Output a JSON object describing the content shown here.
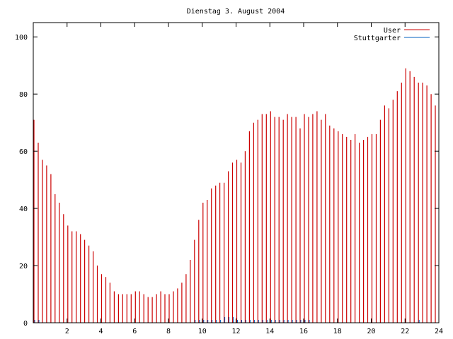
{
  "chart_data": {
    "type": "bar",
    "title": "Dienstag 3. August 2004",
    "xlabel": "",
    "ylabel": "",
    "xlim": [
      0,
      24
    ],
    "ylim": [
      0,
      105
    ],
    "grid": false,
    "legend_position": "top-right",
    "x_ticks": [
      "2",
      "4",
      "6",
      "8",
      "10",
      "12",
      "14",
      "16",
      "18",
      "20",
      "22",
      "24"
    ],
    "y_ticks": [
      "0",
      "20",
      "40",
      "60",
      "80",
      "100"
    ],
    "series": [
      {
        "name": "User",
        "color": "#cc0000",
        "x": [
          0.0,
          0.25,
          0.5,
          0.75,
          1.0,
          1.25,
          1.5,
          1.75,
          2.0,
          2.25,
          2.5,
          2.75,
          3.0,
          3.25,
          3.5,
          3.75,
          4.0,
          4.25,
          4.5,
          4.75,
          5.0,
          5.25,
          5.5,
          5.75,
          6.0,
          6.25,
          6.5,
          6.75,
          7.0,
          7.25,
          7.5,
          7.75,
          8.0,
          8.25,
          8.5,
          8.75,
          9.0,
          9.25,
          9.5,
          9.75,
          10.0,
          10.25,
          10.5,
          10.75,
          11.0,
          11.25,
          11.5,
          11.75,
          12.0,
          12.25,
          12.5,
          12.75,
          13.0,
          13.25,
          13.5,
          13.75,
          14.0,
          14.25,
          14.5,
          14.75,
          15.0,
          15.25,
          15.5,
          15.75,
          16.0,
          16.25,
          16.5,
          16.75,
          17.0,
          17.25,
          17.5,
          17.75,
          18.0,
          18.25,
          18.5,
          18.75,
          19.0,
          19.25,
          19.5,
          19.75,
          20.0,
          20.25,
          20.5,
          20.75,
          21.0,
          21.25,
          21.5,
          21.75,
          22.0,
          22.25,
          22.5,
          22.75,
          23.0,
          23.25,
          23.5,
          23.75
        ],
        "values": [
          71,
          63,
          57,
          55,
          52,
          45,
          42,
          38,
          34,
          32,
          32,
          31,
          29,
          27,
          25,
          20,
          17,
          16,
          14,
          11,
          10,
          10,
          10,
          10,
          11,
          11,
          10,
          9,
          9,
          10,
          11,
          10,
          10,
          11,
          12,
          14,
          17,
          22,
          29,
          36,
          42,
          43,
          47,
          48,
          49,
          49,
          53,
          56,
          57,
          56,
          60,
          67,
          70,
          71,
          73,
          73,
          74,
          72,
          72,
          71,
          73,
          72,
          72,
          68,
          73,
          72,
          73,
          74,
          71,
          73,
          69,
          68,
          67,
          66,
          65,
          64,
          66,
          63,
          64,
          65,
          66,
          66,
          71,
          76,
          75,
          78,
          81,
          84,
          89,
          88,
          86,
          84,
          84,
          83,
          80,
          76
        ]
      },
      {
        "name": "Stuttgarter",
        "color": "#0060c0",
        "x": [
          0.0,
          0.25,
          0.5,
          0.75,
          1.0,
          1.25,
          1.5,
          1.75,
          2.0,
          2.25,
          2.5,
          2.75,
          3.0,
          3.25,
          3.5,
          3.75,
          4.0,
          4.25,
          4.5,
          4.75,
          5.0,
          5.25,
          5.5,
          5.75,
          6.0,
          6.25,
          6.5,
          6.75,
          7.0,
          7.25,
          7.5,
          7.75,
          8.0,
          8.25,
          8.5,
          8.75,
          9.0,
          9.25,
          9.5,
          9.75,
          10.0,
          10.25,
          10.5,
          10.75,
          11.0,
          11.25,
          11.5,
          11.75,
          12.0,
          12.25,
          12.5,
          12.75,
          13.0,
          13.25,
          13.5,
          13.75,
          14.0,
          14.25,
          14.5,
          14.75,
          15.0,
          15.25,
          15.5,
          15.75,
          16.0,
          16.25,
          16.5,
          16.75,
          17.0,
          17.25,
          17.5,
          17.75,
          18.0,
          18.25,
          18.5,
          18.75,
          19.0,
          19.25,
          19.5,
          19.75,
          20.0,
          20.25,
          20.5,
          20.75,
          21.0,
          21.25,
          21.5,
          21.75,
          22.0,
          22.25,
          22.5,
          22.75,
          23.0,
          23.25,
          23.5,
          23.75
        ],
        "values": [
          1,
          1,
          0,
          0,
          0,
          0,
          0,
          0,
          0,
          0,
          0,
          0,
          0,
          0,
          0,
          0,
          0,
          0,
          0,
          0,
          0,
          0,
          0,
          0,
          0,
          0,
          0,
          0,
          0,
          0,
          0,
          0,
          0,
          0,
          0,
          0,
          0,
          0,
          1,
          1,
          1,
          1,
          1,
          1,
          1,
          2,
          2,
          2,
          1,
          1,
          1,
          1,
          1,
          1,
          1,
          1,
          1,
          1,
          1,
          1,
          1,
          1,
          1,
          1,
          1,
          1,
          0,
          0,
          0,
          0,
          0,
          0,
          0,
          0,
          0,
          0,
          0,
          0,
          0,
          0,
          0,
          0,
          0,
          0,
          0,
          0,
          0,
          0,
          0,
          0,
          0,
          1,
          0,
          0,
          0,
          0
        ]
      }
    ]
  }
}
